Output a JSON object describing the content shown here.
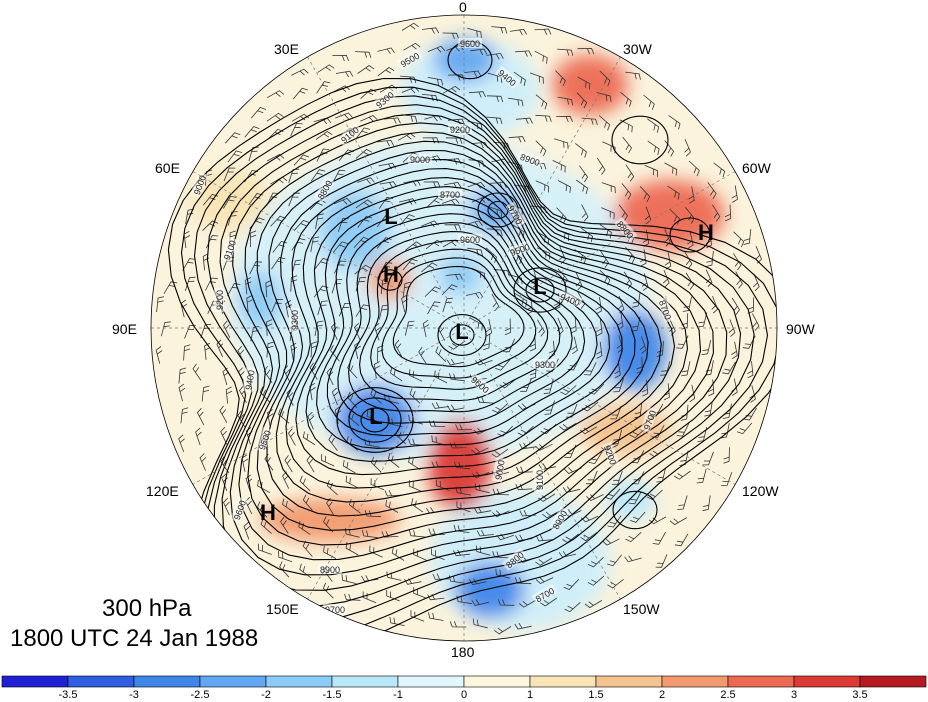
{
  "title": {
    "level": "300 hPa",
    "datetime": "1800 UTC 24 Jan 1988"
  },
  "longitude_labels": [
    "0",
    "30W",
    "60W",
    "90W",
    "120W",
    "150W",
    "180",
    "150E",
    "120E",
    "90E",
    "60E",
    "30E"
  ],
  "pressure_centers": [
    {
      "label": "L",
      "lon_deg": 160,
      "lat_deg": 72
    },
    {
      "label": "H",
      "lon_deg": 142,
      "lat_deg": 66
    },
    {
      "label": "L",
      "lon_deg": 42,
      "lat_deg": 74
    },
    {
      "label": "L",
      "lon_deg": 300,
      "lat_deg": 80
    },
    {
      "label": "L",
      "lon_deg": 275,
      "lat_deg": 84
    },
    {
      "label": "H",
      "lon_deg": 62,
      "lat_deg": 54
    },
    {
      "label": "H",
      "lon_deg": 233,
      "lat_deg": 35
    },
    {
      "label": "H",
      "lon_deg": 124,
      "lat_deg": 36
    }
  ],
  "contour_labels": [
    "9600",
    "9500",
    "9400",
    "9300",
    "9200",
    "9100",
    "9000",
    "8900",
    "8800",
    "8700",
    "9700"
  ],
  "colorbar": {
    "ticks": [
      "-3.5",
      "-3",
      "-2.5",
      "-2",
      "-1.5",
      "-1",
      "0",
      "1",
      "1.5",
      "2",
      "2.5",
      "3",
      "3.5"
    ],
    "colors": [
      "#1f1fd6",
      "#2f5fe0",
      "#3f86ea",
      "#62a8f2",
      "#8cccf7",
      "#b9e8fb",
      "#dff6fc",
      "#fcf6dc",
      "#f8e4b4",
      "#f5c38e",
      "#f29a6e",
      "#ec6a52",
      "#dc3a34",
      "#b51a22"
    ]
  },
  "shaded_anomalies": [
    {
      "sign": "positive",
      "strength": 3
    },
    {
      "sign": "positive",
      "strength": 2
    },
    {
      "sign": "positive",
      "strength": 2
    },
    {
      "sign": "positive",
      "strength": 2
    },
    {
      "sign": "positive",
      "strength": 2
    },
    {
      "sign": "negative",
      "strength": 2
    },
    {
      "sign": "negative",
      "strength": 2
    },
    {
      "sign": "negative",
      "strength": 2
    },
    {
      "sign": "negative",
      "strength": 2
    },
    {
      "sign": "negative",
      "strength": 1
    }
  ]
}
